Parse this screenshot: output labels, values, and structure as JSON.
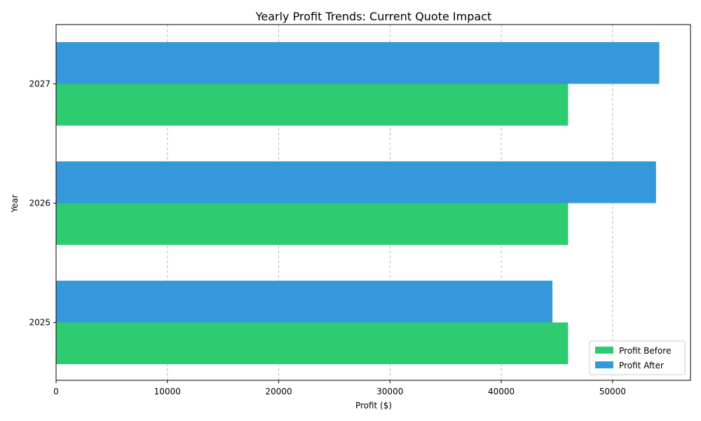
{
  "chart_data": {
    "type": "bar",
    "orientation": "horizontal",
    "title": "Yearly Profit Trends: Current Quote Impact",
    "xlabel": "Profit ($)",
    "ylabel": "Year",
    "categories": [
      "2025",
      "2026",
      "2027"
    ],
    "series": [
      {
        "name": "Profit Before",
        "color": "#2ecc71",
        "values": [
          46000,
          46000,
          46000
        ]
      },
      {
        "name": "Profit After",
        "color": "#3498db",
        "values": [
          44600,
          53900,
          54200
        ]
      }
    ],
    "xlim": [
      0,
      57000
    ],
    "xticks": [
      0,
      10000,
      20000,
      30000,
      40000,
      50000
    ],
    "grid": "x-dashed",
    "legend_position": "bottom-right"
  }
}
